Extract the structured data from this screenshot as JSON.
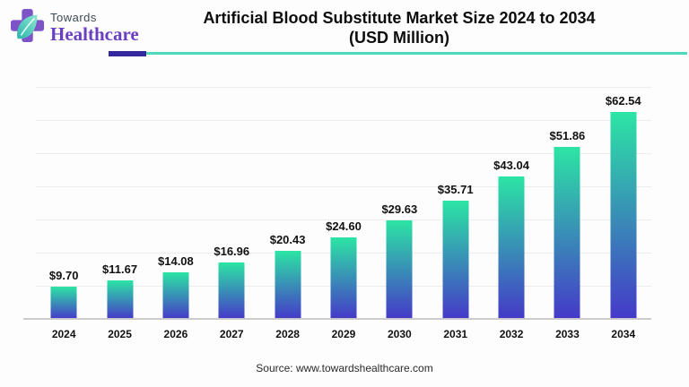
{
  "logo": {
    "towards": "Towards",
    "healthcare": "Healthcare"
  },
  "header": {
    "title_line1": "Artificial Blood Substitute Market Size 2024 to 2034",
    "title_line2": "(USD Million)"
  },
  "footer": {
    "source": "Source: www.towardshealthcare.com"
  },
  "colors": {
    "divider_purple": "#35289e",
    "divider_teal": "#4ed9bc",
    "logo_purple": "#7d53c8",
    "logo_leaf_teal": "#2ab5ac",
    "logo_leaf_light": "#63dcc4",
    "gridline": "#ececec",
    "axis": "#cbcbcb",
    "bar_top": "#2ce5a4",
    "bar_bottom": "#4539c8"
  },
  "chart_data": {
    "type": "bar",
    "title": "Artificial Blood Substitute Market Size 2024 to 2034 (USD Million)",
    "xlabel": "",
    "ylabel": "",
    "categories": [
      "2024",
      "2025",
      "2026",
      "2027",
      "2028",
      "2029",
      "2030",
      "2031",
      "2032",
      "2033",
      "2034"
    ],
    "values": [
      9.7,
      11.67,
      14.08,
      16.96,
      20.43,
      24.6,
      29.63,
      35.71,
      43.04,
      51.86,
      62.54
    ],
    "value_labels": [
      "$9.70",
      "$11.67",
      "$14.08",
      "$16.96",
      "$20.43",
      "$24.60",
      "$29.63",
      "$35.71",
      "$43.04",
      "$51.86",
      "$62.54"
    ],
    "ylim": [
      0,
      70
    ],
    "gridline_step": 10,
    "grid": true,
    "legend": false,
    "y_axis_labels_visible": false,
    "bar_gradient_top": "#2ce5a4",
    "bar_gradient_bottom": "#4539c8"
  }
}
